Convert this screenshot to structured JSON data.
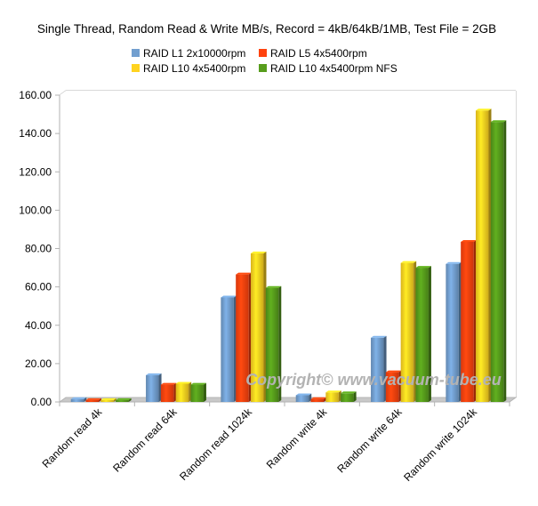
{
  "chart_data": {
    "type": "bar",
    "title": "Single Thread, Random Read & Write MB/s, Record = 4kB/64kB/1MB, Test File = 2GB",
    "xlabel": "",
    "ylabel": "",
    "ylim": [
      0,
      160
    ],
    "yticks": [
      "0.00",
      "20.00",
      "40.00",
      "60.00",
      "80.00",
      "100.00",
      "120.00",
      "140.00",
      "160.00"
    ],
    "grid": true,
    "legend_position": "top",
    "categories": [
      "Random read 4k",
      "Random read 64k",
      "Random read 1024k",
      "Random write 4k",
      "Random write 64k",
      "Random write 1024k"
    ],
    "series": [
      {
        "name": "RAID L1 2x10000rpm",
        "color": "#729fcf",
        "values": [
          1.5,
          14.0,
          54.5,
          3.5,
          33.5,
          72.0
        ]
      },
      {
        "name": "RAID L5 4x5400rpm",
        "color": "#ff420e",
        "values": [
          1.0,
          9.0,
          66.5,
          1.5,
          15.5,
          83.5
        ]
      },
      {
        "name": "RAID L10 4x5400rpm",
        "color": "#ffd320",
        "values": [
          1.0,
          9.5,
          77.5,
          5.0,
          72.5,
          152.0
        ]
      },
      {
        "name": "RAID L10 4x5400rpm NFS",
        "color": "#579d1c",
        "values": [
          1.0,
          9.0,
          59.5,
          4.5,
          70.0,
          146.0
        ]
      }
    ]
  },
  "watermark": "Copyright© www.vacuum-tube.eu"
}
